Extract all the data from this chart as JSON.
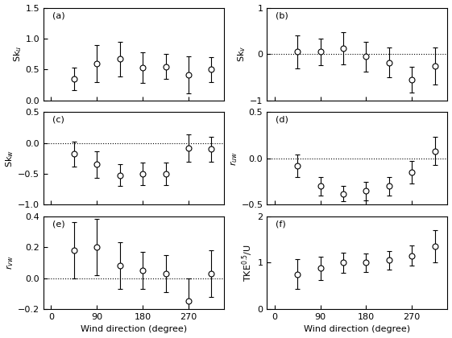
{
  "x": [
    45,
    90,
    135,
    180,
    225,
    270,
    315
  ],
  "panels": [
    {
      "label": "(a)",
      "ylabel": "Sk$_u$",
      "ylim": [
        0,
        1.5
      ],
      "yticks": [
        0,
        0.5,
        1,
        1.5
      ],
      "dotted_zero": false,
      "values": [
        0.35,
        0.6,
        0.67,
        0.53,
        0.55,
        0.42,
        0.5
      ],
      "errors": [
        0.18,
        0.3,
        0.28,
        0.25,
        0.2,
        0.3,
        0.2
      ]
    },
    {
      "label": "(b)",
      "ylabel": "Sk$_v$",
      "ylim": [
        -1,
        1
      ],
      "yticks": [
        -1,
        0,
        1
      ],
      "dotted_zero": true,
      "values": [
        0.05,
        0.05,
        0.13,
        -0.05,
        -0.18,
        -0.55,
        -0.25
      ],
      "errors": [
        0.35,
        0.28,
        0.35,
        0.32,
        0.32,
        0.28,
        0.4
      ]
    },
    {
      "label": "(c)",
      "ylabel": "Sk$_w$",
      "ylim": [
        -1,
        0.5
      ],
      "yticks": [
        -1,
        -0.5,
        0,
        0.5
      ],
      "dotted_zero": true,
      "values": [
        -0.18,
        -0.35,
        -0.52,
        -0.5,
        -0.5,
        -0.08,
        -0.1
      ],
      "errors": [
        0.2,
        0.22,
        0.18,
        0.18,
        0.18,
        0.22,
        0.2
      ]
    },
    {
      "label": "(d)",
      "ylabel": "$r_{uw}$",
      "ylim": [
        -0.5,
        0.5
      ],
      "yticks": [
        -0.5,
        0,
        0.5
      ],
      "dotted_zero": true,
      "values": [
        -0.08,
        -0.3,
        -0.38,
        -0.35,
        -0.3,
        -0.15,
        0.08
      ],
      "errors": [
        0.12,
        0.1,
        0.08,
        0.1,
        0.1,
        0.12,
        0.15
      ]
    },
    {
      "label": "(e)",
      "ylabel": "$r_{vw}$",
      "ylim": [
        -0.2,
        0.4
      ],
      "yticks": [
        -0.2,
        0,
        0.2,
        0.4
      ],
      "dotted_zero": true,
      "xlabel": "Wind direction (degree)",
      "values": [
        0.18,
        0.2,
        0.08,
        0.05,
        0.03,
        -0.15,
        0.03
      ],
      "errors": [
        0.18,
        0.18,
        0.15,
        0.12,
        0.12,
        0.15,
        0.15
      ]
    },
    {
      "label": "(f)",
      "ylabel": "TKE$^{0.5}$/U",
      "ylim": [
        0,
        2
      ],
      "yticks": [
        0,
        1,
        2
      ],
      "dotted_zero": false,
      "xlabel": "Wind direction (degree)",
      "values": [
        0.75,
        0.88,
        1.0,
        1.0,
        1.05,
        1.15,
        1.35
      ],
      "errors": [
        0.32,
        0.25,
        0.22,
        0.2,
        0.2,
        0.22,
        0.35
      ]
    }
  ],
  "bg_color": "white",
  "marker": "o",
  "markersize": 5,
  "linewidth": 0.8,
  "capsize": 2.5,
  "xticks": [
    0,
    90,
    180,
    270
  ],
  "xlim": [
    -15,
    340
  ]
}
